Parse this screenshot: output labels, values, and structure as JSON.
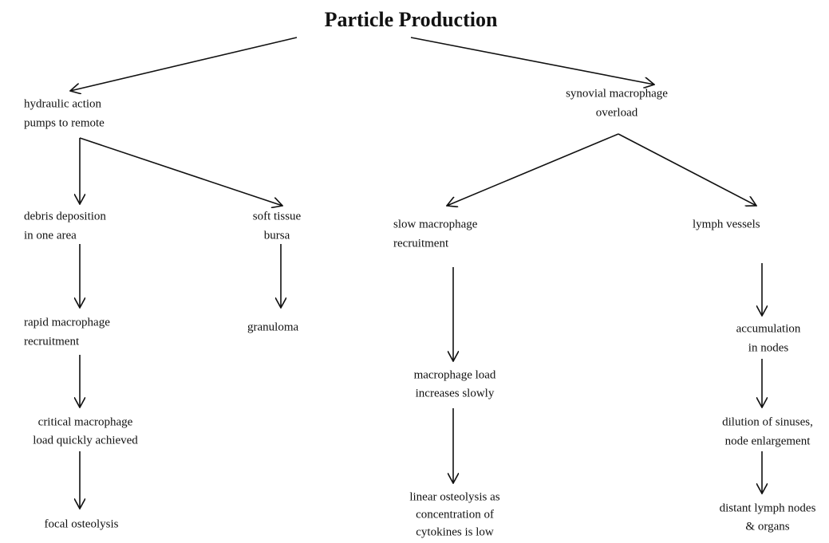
{
  "title": "Particle Production",
  "nodes": [
    {
      "lines": [
        "hydraulic action",
        "pumps to remote"
      ]
    },
    {
      "lines": [
        "synovial macrophage",
        "overload"
      ]
    },
    {
      "lines": [
        "debris deposition",
        "in one area"
      ]
    },
    {
      "lines": [
        "soft tissue",
        "bursa"
      ]
    },
    {
      "lines": [
        "slow macrophage",
        "recruitment"
      ]
    },
    {
      "lines": [
        "lymph vessels"
      ]
    },
    {
      "lines": [
        "rapid macrophage",
        "recruitment"
      ]
    },
    {
      "lines": [
        "granuloma"
      ]
    },
    {
      "lines": [
        "accumulation",
        "in nodes"
      ]
    },
    {
      "lines": [
        "critical macrophage",
        "load quickly achieved"
      ]
    },
    {
      "lines": [
        "macrophage load",
        "increases slowly"
      ]
    },
    {
      "lines": [
        "dilution of sinuses,",
        "node enlargement"
      ]
    },
    {
      "lines": [
        "focal osteolysis"
      ]
    },
    {
      "lines": [
        "linear osteolysis as",
        "concentration of",
        "cytokines is low"
      ]
    },
    {
      "lines": [
        "distant lymph nodes",
        "& organs"
      ]
    }
  ]
}
